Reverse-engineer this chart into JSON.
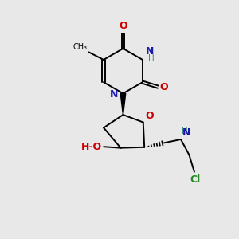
{
  "background_color": "#e8e8e8",
  "atom_colors": {
    "C": "#000000",
    "N": "#1a1aaa",
    "O": "#cc0000",
    "H": "#408888",
    "Cl": "#228B22"
  },
  "figsize": [
    3.0,
    3.0
  ],
  "dpi": 100
}
